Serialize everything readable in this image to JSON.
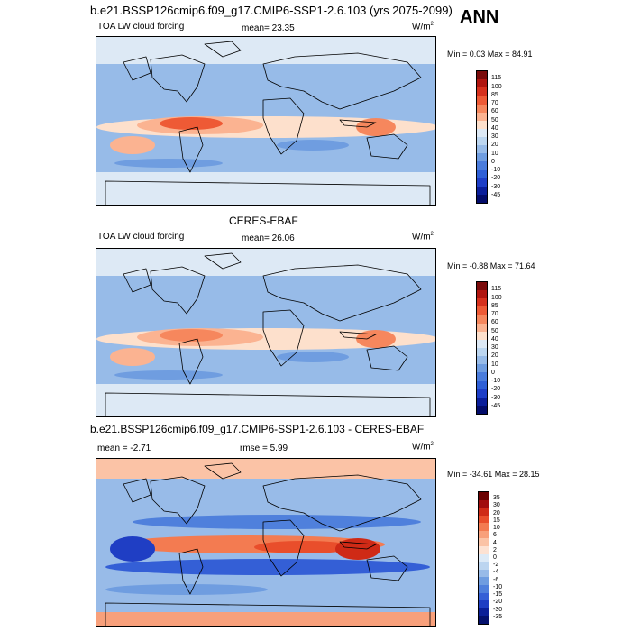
{
  "header": {
    "run_title": "b.e21.BSSP126cmip6.f09_g17.CMIP6-SSP1-2.6.103 (yrs 2075-2099)",
    "season": "ANN"
  },
  "panels": [
    {
      "id": "model",
      "variable": "TOA LW cloud forcing",
      "stat_label": "mean=",
      "stat_value": "23.35",
      "units_base": "W/m",
      "units_exp": "2",
      "minmax": "Min =   0.03  Max =  84.91",
      "levels": [
        "115",
        "100",
        "85",
        "70",
        "60",
        "50",
        "40",
        "30",
        "20",
        "10",
        "0",
        "-10",
        "-20",
        "-30",
        "-45"
      ]
    },
    {
      "id": "obs",
      "section_title": "CERES-EBAF",
      "variable": "TOA LW cloud forcing",
      "stat_label": "mean=",
      "stat_value": "26.06",
      "units_base": "W/m",
      "units_exp": "2",
      "minmax": "Min =  -0.88  Max =  71.64",
      "levels": [
        "115",
        "100",
        "85",
        "70",
        "60",
        "50",
        "40",
        "30",
        "20",
        "10",
        "0",
        "-10",
        "-20",
        "-30",
        "-45"
      ]
    },
    {
      "id": "diff",
      "section_title": "b.e21.BSSP126cmip6.f09_g17.CMIP6-SSP1-2.6.103 - CERES-EBAF",
      "mean_label": "mean =",
      "mean_value": "-2.71",
      "rmse_label": "rmse =",
      "rmse_value": "5.99",
      "units_base": "W/m",
      "units_exp": "2",
      "minmax": "Min = -34.61  Max =  28.15",
      "levels": [
        "35",
        "30",
        "20",
        "15",
        "10",
        "6",
        "4",
        "2",
        "0",
        "-2",
        "-4",
        "-6",
        "-10",
        "-15",
        "-20",
        "-30",
        "-35"
      ]
    }
  ],
  "colors": {
    "abs_scale": [
      "#7a0b0b",
      "#b0150f",
      "#d6301c",
      "#ee5a35",
      "#f6875d",
      "#fbb391",
      "#fde0cc",
      "#dde9f5",
      "#bcd6f0",
      "#97bbe8",
      "#6f9de0",
      "#4a7cdc",
      "#2e5fd6",
      "#1d3ec7",
      "#0a1e9a",
      "#030c6a"
    ],
    "diff_scale": [
      "#6a0000",
      "#a10d0d",
      "#cf2a16",
      "#e94e2b",
      "#f37b51",
      "#f8a07b",
      "#fbc3a6",
      "#fde2d3",
      "#ddeaf7",
      "#bcd5f0",
      "#98bbe8",
      "#6f9de0",
      "#4f80dc",
      "#345fd6",
      "#1f3ec4",
      "#0b1f98",
      "#04106c"
    ]
  }
}
